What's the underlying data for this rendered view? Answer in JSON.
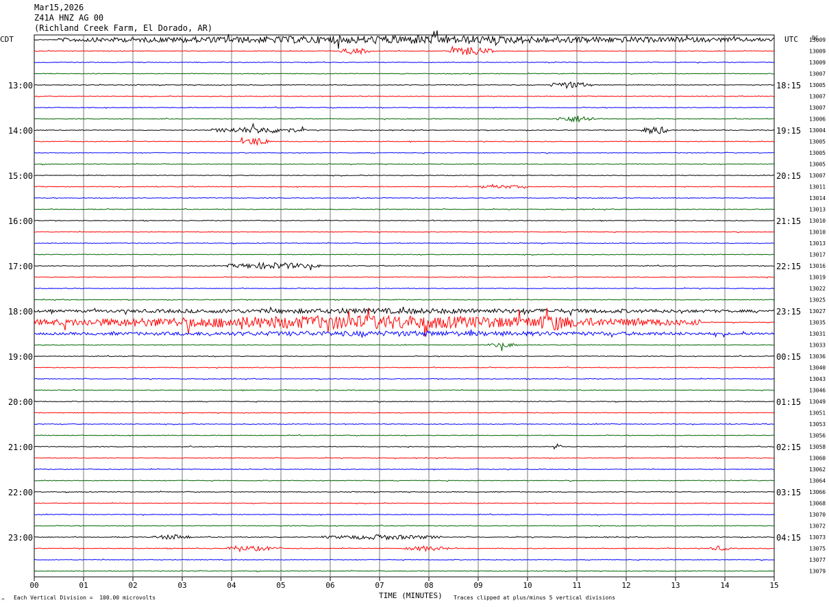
{
  "header": {
    "date": "Mar15,2026",
    "station": "Z41A HNZ AG 00",
    "location": "(Richland Creek Farm, El Dorado, AR)"
  },
  "footer": {
    "vertical_division": "Each Vertical Division =  100.00 microvolts",
    "clipping_note": "Traces clipped at plus/minus 5 vertical divisions",
    "corner_mark": "^"
  },
  "chart_data": {
    "type": "line",
    "title": "",
    "xlabel": "TIME (MINUTES)",
    "left_axis_label": "CDT",
    "right_axis_label": "UTC",
    "right_column_header": "DC",
    "x_ticks": [
      "00",
      "01",
      "02",
      "03",
      "04",
      "05",
      "06",
      "07",
      "08",
      "09",
      "10",
      "11",
      "12",
      "13",
      "14",
      "15"
    ],
    "xlim": [
      0,
      15
    ],
    "grid": true,
    "trace_colors": [
      "#000000",
      "#ff0000",
      "#0000ff",
      "#006400"
    ],
    "left_time_labels": [
      {
        "row": 4,
        "label": "13:00"
      },
      {
        "row": 8,
        "label": "14:00"
      },
      {
        "row": 12,
        "label": "15:00"
      },
      {
        "row": 16,
        "label": "16:00"
      },
      {
        "row": 20,
        "label": "17:00"
      },
      {
        "row": 24,
        "label": "18:00"
      },
      {
        "row": 28,
        "label": "19:00"
      },
      {
        "row": 32,
        "label": "20:00"
      },
      {
        "row": 36,
        "label": "21:00"
      },
      {
        "row": 40,
        "label": "22:00"
      },
      {
        "row": 44,
        "label": "23:00"
      }
    ],
    "right_time_labels": [
      {
        "row": 4,
        "label": "18:15"
      },
      {
        "row": 8,
        "label": "19:15"
      },
      {
        "row": 12,
        "label": "20:15"
      },
      {
        "row": 16,
        "label": "21:15"
      },
      {
        "row": 20,
        "label": "22:15"
      },
      {
        "row": 24,
        "label": "23:15"
      },
      {
        "row": 28,
        "label": "00:15"
      },
      {
        "row": 32,
        "label": "01:15"
      },
      {
        "row": 36,
        "label": "02:15"
      },
      {
        "row": 40,
        "label": "03:15"
      },
      {
        "row": 44,
        "label": "04:15"
      }
    ],
    "dc_offsets": [
      "13009",
      "13009",
      "13009",
      "13007",
      "13005",
      "13007",
      "13007",
      "13006",
      "13004",
      "13005",
      "13005",
      "13005",
      "13007",
      "13011",
      "13014",
      "13013",
      "13010",
      "13010",
      "13013",
      "13017",
      "13016",
      "13019",
      "13022",
      "13025",
      "13027",
      "13035",
      "13031",
      "13033",
      "13036",
      "13040",
      "13043",
      "13046",
      "13049",
      "13051",
      "13053",
      "13056",
      "13058",
      "13060",
      "13062",
      "13064",
      "13066",
      "13068",
      "13070",
      "13072",
      "13073",
      "13075",
      "13077",
      "13079"
    ],
    "events": [
      {
        "row": 0,
        "start_min": 0.5,
        "end_min": 15,
        "amp_div": 2.5
      },
      {
        "row": 1,
        "start_min": 6.2,
        "end_min": 6.8,
        "amp_div": 2
      },
      {
        "row": 1,
        "start_min": 8.4,
        "end_min": 9.3,
        "amp_div": 2.5
      },
      {
        "row": 4,
        "start_min": 10.4,
        "end_min": 11.3,
        "amp_div": 2
      },
      {
        "row": 7,
        "start_min": 10.6,
        "end_min": 11.4,
        "amp_div": 2
      },
      {
        "row": 8,
        "start_min": 3.6,
        "end_min": 5.5,
        "amp_div": 2
      },
      {
        "row": 8,
        "start_min": 12.3,
        "end_min": 12.9,
        "amp_div": 2.5
      },
      {
        "row": 9,
        "start_min": 4.2,
        "end_min": 4.8,
        "amp_div": 2.5
      },
      {
        "row": 13,
        "start_min": 9.0,
        "end_min": 10.0,
        "amp_div": 1
      },
      {
        "row": 20,
        "start_min": 3.9,
        "end_min": 5.8,
        "amp_div": 2
      },
      {
        "row": 24,
        "start_min": 0,
        "end_min": 15,
        "amp_div": 1.5
      },
      {
        "row": 25,
        "start_min": 0,
        "end_min": 13.5,
        "amp_div": 4
      },
      {
        "row": 25,
        "start_min": 9.9,
        "end_min": 11.1,
        "amp_div": 5
      },
      {
        "row": 26,
        "start_min": 0,
        "end_min": 15,
        "amp_div": 1.5
      },
      {
        "row": 27,
        "start_min": 9.2,
        "end_min": 9.8,
        "amp_div": 1.5
      },
      {
        "row": 36,
        "start_min": 10.5,
        "end_min": 10.7,
        "amp_div": 2
      },
      {
        "row": 44,
        "start_min": 2.4,
        "end_min": 3.2,
        "amp_div": 1.5
      },
      {
        "row": 44,
        "start_min": 5.8,
        "end_min": 8.3,
        "amp_div": 1.5
      },
      {
        "row": 45,
        "start_min": 3.9,
        "end_min": 5.0,
        "amp_div": 1.5
      },
      {
        "row": 45,
        "start_min": 7.5,
        "end_min": 8.4,
        "amp_div": 1.5
      },
      {
        "row": 45,
        "start_min": 13.7,
        "end_min": 14.1,
        "amp_div": 1.5
      }
    ]
  }
}
